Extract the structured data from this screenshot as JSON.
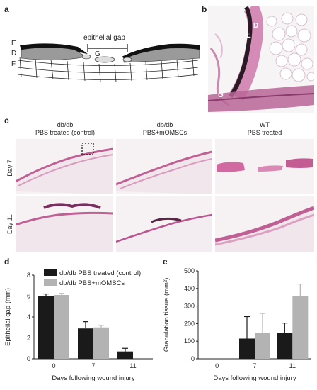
{
  "panels": {
    "a": {
      "label": "a",
      "gap_label": "epithelial gap",
      "layers": [
        "E",
        "D",
        "F"
      ],
      "granulation": "G"
    },
    "b": {
      "label": "b",
      "markers": [
        "D",
        "E",
        "F",
        "G"
      ]
    },
    "c": {
      "label": "c",
      "columns": [
        {
          "line1": "db/db",
          "line2": "PBS treated (control)"
        },
        {
          "line1": "db/db",
          "line2": "PBS+mOMSCs"
        },
        {
          "line1": "WT",
          "line2": "PBS treated"
        }
      ],
      "rows": [
        "Day 7",
        "Day 11"
      ]
    },
    "d": {
      "label": "d"
    },
    "e": {
      "label": "e"
    }
  },
  "colors": {
    "control": "#1a1a1a",
    "momscs": "#b3b3b3",
    "tissue": "#c76a9a",
    "tissue_dark": "#7a2e5e"
  },
  "chart_data": [
    {
      "type": "bar",
      "panel": "d",
      "categories": [
        "0",
        "7",
        "11"
      ],
      "series": [
        {
          "name": "db/db PBS treated (control)",
          "values": [
            6.0,
            2.9,
            0.7
          ],
          "errors": [
            0.2,
            0.65,
            0.3
          ]
        },
        {
          "name": "db/db PBS+mOMSCs",
          "values": [
            6.1,
            3.0,
            null
          ],
          "errors": [
            0.15,
            0.2,
            null
          ]
        }
      ],
      "xlabel": "Days following wound injury",
      "ylabel": "Epithelial gap (mm)",
      "ylim": [
        0,
        8
      ],
      "yticks": [
        0,
        2,
        4,
        6,
        8
      ],
      "legend": "top-right"
    },
    {
      "type": "bar",
      "panel": "e",
      "categories": [
        "0",
        "7",
        "11"
      ],
      "series": [
        {
          "name": "db/db PBS treated (control)",
          "values": [
            null,
            115,
            148
          ],
          "errors": [
            null,
            125,
            55
          ]
        },
        {
          "name": "db/db PBS+mOMSCs",
          "values": [
            null,
            148,
            355
          ],
          "errors": [
            null,
            110,
            70
          ]
        }
      ],
      "xlabel": "Days following wound injury",
      "ylabel": "Granulation tissue (mm²)",
      "ylim": [
        0,
        500
      ],
      "yticks": [
        0,
        100,
        200,
        300,
        400,
        500
      ]
    }
  ]
}
